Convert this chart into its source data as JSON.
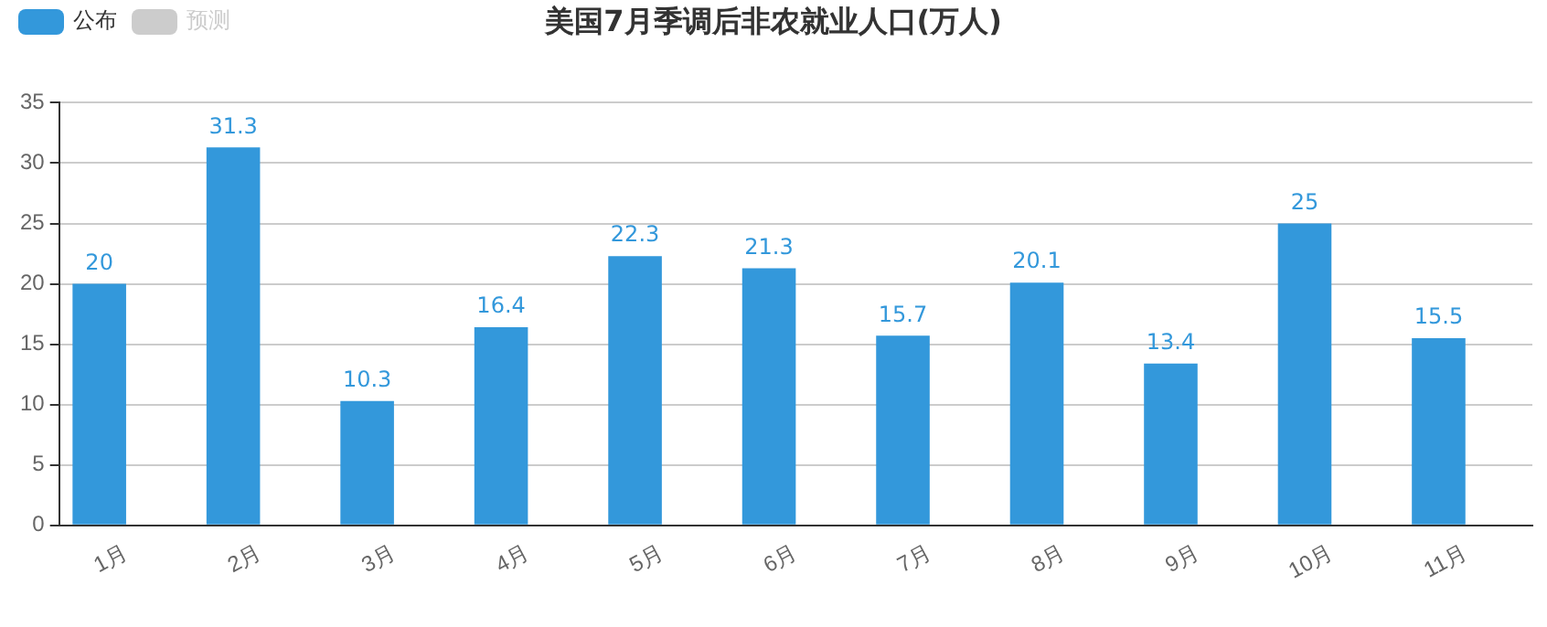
{
  "chart_data": {
    "type": "bar",
    "title": "美国7月季调后非农就业人口(万人)",
    "categories": [
      "1月",
      "2月",
      "3月",
      "4月",
      "5月",
      "6月",
      "7月",
      "8月",
      "9月",
      "10月",
      "11月"
    ],
    "series": [
      {
        "name": "公布",
        "color": "#3398db",
        "values": [
          20,
          31.3,
          10.3,
          16.4,
          22.3,
          21.3,
          15.7,
          20.1,
          13.4,
          25,
          15.5
        ]
      },
      {
        "name": "预测",
        "color": "#cccccc",
        "values": [
          null,
          null,
          null,
          null,
          null,
          null,
          null,
          null,
          null,
          null,
          null
        ]
      }
    ],
    "ylim": [
      0,
      35
    ],
    "yticks": [
      0,
      5,
      10,
      15,
      20,
      25,
      30,
      35
    ],
    "grid": "y",
    "legend": "top left",
    "data_labels": true
  }
}
